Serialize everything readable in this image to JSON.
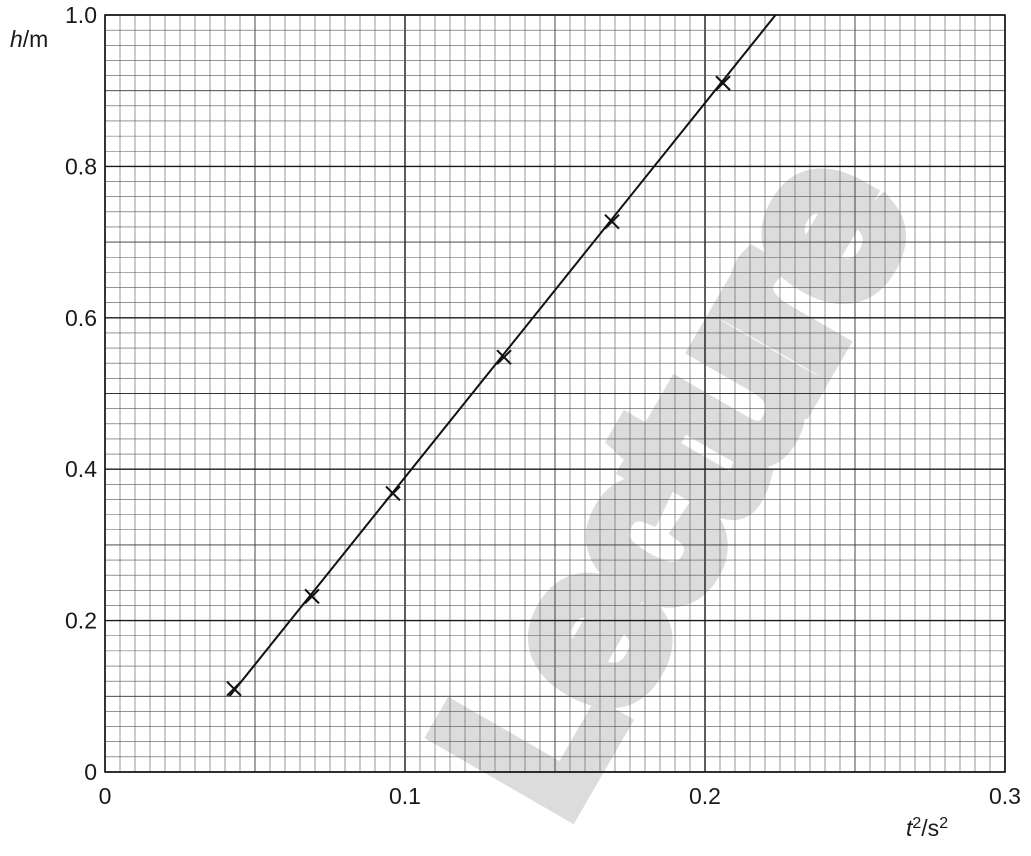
{
  "chart_data": {
    "type": "scatter",
    "title": "",
    "xlabel": {
      "var": "t",
      "sup": "2",
      "unit": "/s",
      "unit_sup": "2"
    },
    "ylabel": {
      "var": "h",
      "unit": "/m"
    },
    "xlim": [
      0,
      0.3
    ],
    "ylim": [
      0,
      1.0
    ],
    "x_ticks": [
      0,
      0.1,
      0.2,
      0.3
    ],
    "x_tick_labels": [
      "0",
      "0.1",
      "0.2",
      "0.3"
    ],
    "y_ticks": [
      0,
      0.2,
      0.4,
      0.6,
      0.8,
      1.0
    ],
    "y_tick_labels": [
      "0",
      "0.2",
      "0.4",
      "0.6",
      "0.8",
      "1.0"
    ],
    "grid": true,
    "points": [
      {
        "x": 0.043,
        "y": 0.11
      },
      {
        "x": 0.069,
        "y": 0.232
      },
      {
        "x": 0.096,
        "y": 0.368
      },
      {
        "x": 0.133,
        "y": 0.548
      },
      {
        "x": 0.169,
        "y": 0.727
      },
      {
        "x": 0.206,
        "y": 0.91
      }
    ],
    "best_fit_line": {
      "from": {
        "x": 0.0415,
        "y": 0.1
      },
      "to": {
        "x": 0.2235,
        "y": 1.0
      }
    },
    "marker": "cross"
  },
  "watermark": {
    "text": "Lecture",
    "color": "#d9d9d9"
  }
}
